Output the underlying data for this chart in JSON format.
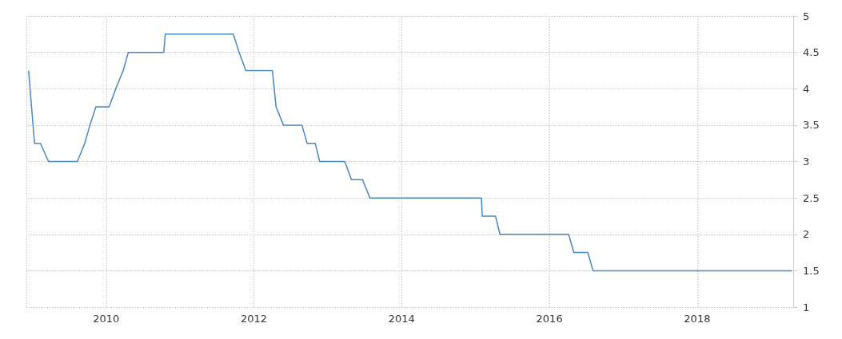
{
  "chart_data": {
    "type": "line",
    "x": [
      2008.95,
      2009.03,
      2009.11,
      2009.22,
      2009.61,
      2009.71,
      2009.78,
      2009.86,
      2010.04,
      2010.13,
      2010.23,
      2010.3,
      2010.78,
      2010.8,
      2011.72,
      2011.8,
      2011.89,
      2012.25,
      2012.3,
      2012.4,
      2012.65,
      2012.72,
      2012.83,
      2012.89,
      2013.23,
      2013.32,
      2013.47,
      2013.57,
      2015.08,
      2015.09,
      2015.27,
      2015.33,
      2016.26,
      2016.33,
      2016.52,
      2016.59,
      2019.28
    ],
    "values": [
      4.25,
      3.25,
      3.25,
      3,
      3,
      3.25,
      3.5,
      3.75,
      3.75,
      4,
      4.25,
      4.5,
      4.5,
      4.75,
      4.75,
      4.5,
      4.25,
      4.25,
      3.75,
      3.5,
      3.5,
      3.25,
      3.25,
      3,
      3,
      2.75,
      2.75,
      2.5,
      2.5,
      2.25,
      2.25,
      2,
      2,
      1.75,
      1.75,
      1.5,
      1.5
    ],
    "color": "#4a86c0",
    "xlim": [
      2008.92,
      2019.3
    ],
    "xticks": [
      2010,
      2012,
      2014,
      2016,
      2018
    ],
    "ylim": [
      1,
      5
    ],
    "yticks": [
      1,
      1.5,
      2,
      2.5,
      3,
      3.5,
      4,
      4.5,
      5
    ],
    "grid": true,
    "marker": "none",
    "line_style": "solid"
  }
}
